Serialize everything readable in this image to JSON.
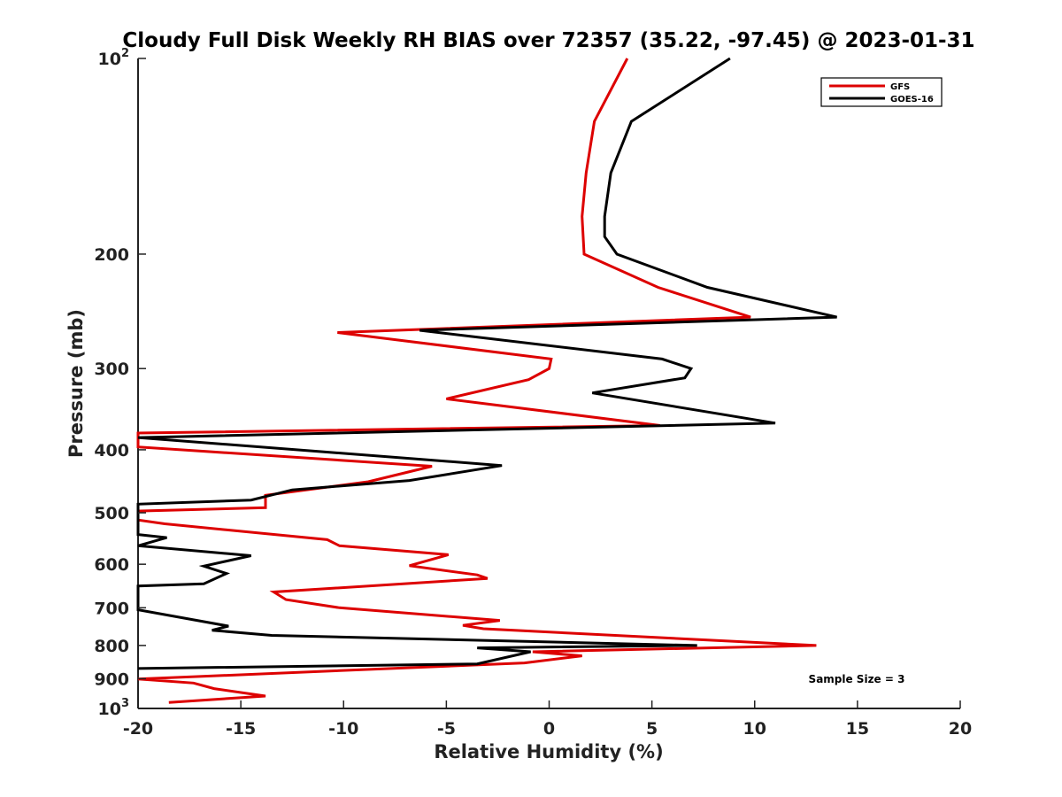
{
  "chart_data": {
    "type": "line",
    "title": "Cloudy Full Disk Weekly RH BIAS over 72357 (35.22, -97.45) @ 2023-01-31",
    "xlabel": "Relative Humidity (%)",
    "ylabel": "Pressure (mb)",
    "xlim": [
      -20,
      20
    ],
    "ylim": [
      100,
      1000
    ],
    "yscale": "log",
    "y_reversed": true,
    "grid": false,
    "legend_position": "top-right",
    "x_ticks": [
      "-20",
      "-15",
      "-10",
      "-5",
      "0",
      "5",
      "10",
      "15",
      "20"
    ],
    "y_ticks": [
      {
        "value": 100,
        "base": "10",
        "exp": "2"
      },
      {
        "value": 200,
        "label": "200"
      },
      {
        "value": 300,
        "label": "300"
      },
      {
        "value": 400,
        "label": "400"
      },
      {
        "value": 500,
        "label": "500"
      },
      {
        "value": 600,
        "label": "600"
      },
      {
        "value": 700,
        "label": "700"
      },
      {
        "value": 800,
        "label": "800"
      },
      {
        "value": 900,
        "label": "900"
      },
      {
        "value": 1000,
        "base": "10",
        "exp": "3"
      }
    ],
    "annotation": "Sample Size = 3",
    "series": [
      {
        "name": "GFS",
        "color": "#dd0000",
        "points": [
          [
            3.8,
            100
          ],
          [
            2.2,
            125
          ],
          [
            1.8,
            150
          ],
          [
            1.6,
            175
          ],
          [
            1.7,
            200
          ],
          [
            5.3,
            225
          ],
          [
            9.8,
            250
          ],
          [
            -10.3,
            264
          ],
          [
            0.1,
            290
          ],
          [
            0.0,
            300
          ],
          [
            -1.0,
            312
          ],
          [
            -5.0,
            334
          ],
          [
            5.4,
            367
          ],
          [
            -20.0,
            377
          ],
          [
            -20.0,
            396
          ],
          [
            -5.7,
            424
          ],
          [
            -8.8,
            448
          ],
          [
            -13.8,
            470
          ],
          [
            -13.8,
            491
          ],
          [
            -20.0,
            497
          ],
          [
            -20.0,
            513
          ],
          [
            -18.7,
            520
          ],
          [
            -10.8,
            550
          ],
          [
            -10.2,
            562
          ],
          [
            -4.9,
            580
          ],
          [
            -6.8,
            603
          ],
          [
            -3.5,
            623
          ],
          [
            -3.0,
            631
          ],
          [
            -13.4,
            662
          ],
          [
            -12.8,
            680
          ],
          [
            -10.2,
            700
          ],
          [
            -2.4,
            732
          ],
          [
            -4.2,
            745
          ],
          [
            -3.2,
            754
          ],
          [
            13.0,
            800
          ],
          [
            -0.8,
            818
          ],
          [
            1.6,
            830
          ],
          [
            -1.2,
            851
          ],
          [
            -20.0,
            901
          ],
          [
            -17.3,
            914
          ],
          [
            -16.3,
            932
          ],
          [
            -13.8,
            957
          ],
          [
            -18.5,
            979
          ]
        ]
      },
      {
        "name": "GOES-16",
        "color": "#000000",
        "points": [
          [
            8.8,
            100
          ],
          [
            4.0,
            125
          ],
          [
            3.0,
            150
          ],
          [
            2.7,
            175
          ],
          [
            2.7,
            188
          ],
          [
            3.3,
            200
          ],
          [
            7.7,
            225
          ],
          [
            14.0,
            250
          ],
          [
            -6.3,
            262
          ],
          [
            5.5,
            290
          ],
          [
            6.9,
            300
          ],
          [
            6.6,
            310
          ],
          [
            2.1,
            327
          ],
          [
            11.0,
            364
          ],
          [
            -20.0,
            383
          ],
          [
            -2.3,
            423
          ],
          [
            -6.8,
            446
          ],
          [
            -12.5,
            461
          ],
          [
            -14.5,
            478
          ],
          [
            -20.0,
            485
          ],
          [
            -20.0,
            540
          ],
          [
            -18.6,
            546
          ],
          [
            -20.0,
            562
          ],
          [
            -14.5,
            582
          ],
          [
            -16.8,
            604
          ],
          [
            -15.7,
            620
          ],
          [
            -16.8,
            643
          ],
          [
            -20.0,
            648
          ],
          [
            -20.0,
            705
          ],
          [
            -15.6,
            747
          ],
          [
            -16.4,
            758
          ],
          [
            -13.5,
            772
          ],
          [
            7.2,
            800
          ],
          [
            -3.5,
            807
          ],
          [
            -0.9,
            818
          ],
          [
            -3.5,
            854
          ],
          [
            -20.0,
            868
          ]
        ]
      }
    ]
  }
}
